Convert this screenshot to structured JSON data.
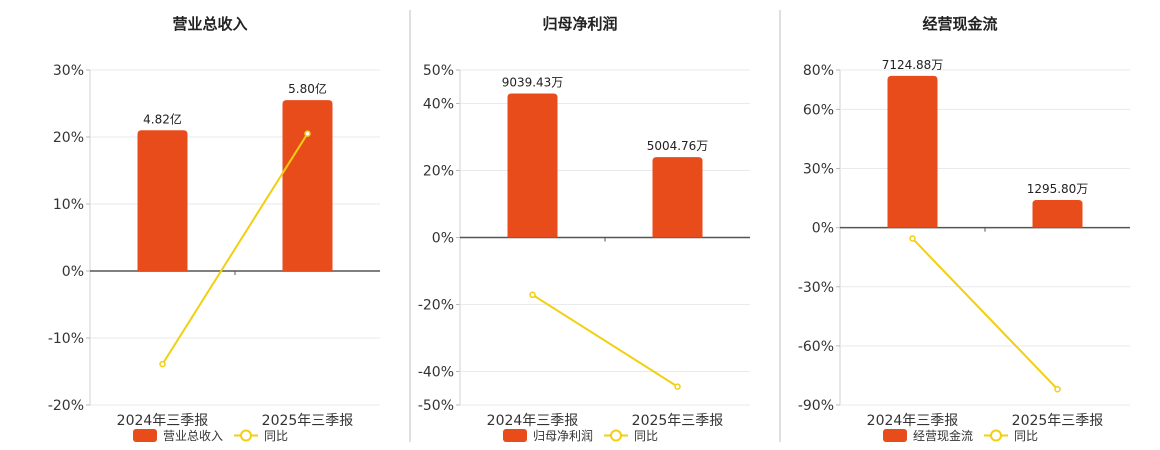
{
  "chart_data": [
    {
      "type": "bar",
      "title": "营业总收入",
      "categories": [
        "2024年三季报",
        "2025年三季报"
      ],
      "series": [
        {
          "name": "营业总收入",
          "kind": "bar",
          "values_pct": [
            21,
            25.5
          ],
          "labels": [
            "4.82亿",
            "5.80亿"
          ]
        },
        {
          "name": "同比",
          "kind": "line",
          "values": [
            -13.9,
            20.5
          ]
        }
      ],
      "ylim": [
        -20,
        30
      ],
      "yticks": [
        {
          "v": 30,
          "label": "30%"
        },
        {
          "v": 20,
          "label": "20%"
        },
        {
          "v": 10,
          "label": "10%"
        },
        {
          "v": 0,
          "label": "0%"
        },
        {
          "v": -10,
          "label": "-10%"
        },
        {
          "v": -20,
          "label": "-20%"
        }
      ],
      "colors": {
        "bar": "#E84C1A",
        "line": "#F2CF0F"
      },
      "grid": true,
      "legend": "bottom"
    },
    {
      "type": "bar",
      "title": "归母净利润",
      "categories": [
        "2024年三季报",
        "2025年三季报"
      ],
      "series": [
        {
          "name": "归母净利润",
          "kind": "bar",
          "values_pct": [
            43,
            24
          ],
          "labels": [
            "9039.43万",
            "5004.76万"
          ]
        },
        {
          "name": "同比",
          "kind": "line",
          "values": [
            -17.1,
            -44.5
          ]
        }
      ],
      "ylim": [
        -50,
        50
      ],
      "yticks": [
        {
          "v": 50,
          "label": "50%"
        },
        {
          "v": 40,
          "label": "40%"
        },
        {
          "v": 20,
          "label": "20%"
        },
        {
          "v": 0,
          "label": "0%"
        },
        {
          "v": -20,
          "label": "-20%"
        },
        {
          "v": -40,
          "label": "-40%"
        },
        {
          "v": -50,
          "label": "-50%"
        }
      ],
      "colors": {
        "bar": "#E84C1A",
        "line": "#F2CF0F"
      },
      "grid": true,
      "legend": "bottom"
    },
    {
      "type": "bar",
      "title": "经营现金流",
      "categories": [
        "2024年三季报",
        "2025年三季报"
      ],
      "series": [
        {
          "name": "经营现金流",
          "kind": "bar",
          "values_pct": [
            77,
            14
          ],
          "labels": [
            "7124.88万",
            "1295.80万"
          ]
        },
        {
          "name": "同比",
          "kind": "line",
          "values": [
            -5.5,
            -82
          ]
        }
      ],
      "ylim": [
        -90,
        80
      ],
      "yticks": [
        {
          "v": 80,
          "label": "80%"
        },
        {
          "v": 60,
          "label": "60%"
        },
        {
          "v": 30,
          "label": "30%"
        },
        {
          "v": 0,
          "label": "0%"
        },
        {
          "v": -30,
          "label": "-30%"
        },
        {
          "v": -60,
          "label": "-60%"
        },
        {
          "v": -90,
          "label": "-90%"
        }
      ],
      "colors": {
        "bar": "#E84C1A",
        "line": "#F2CF0F"
      },
      "grid": true,
      "legend": "bottom"
    }
  ]
}
